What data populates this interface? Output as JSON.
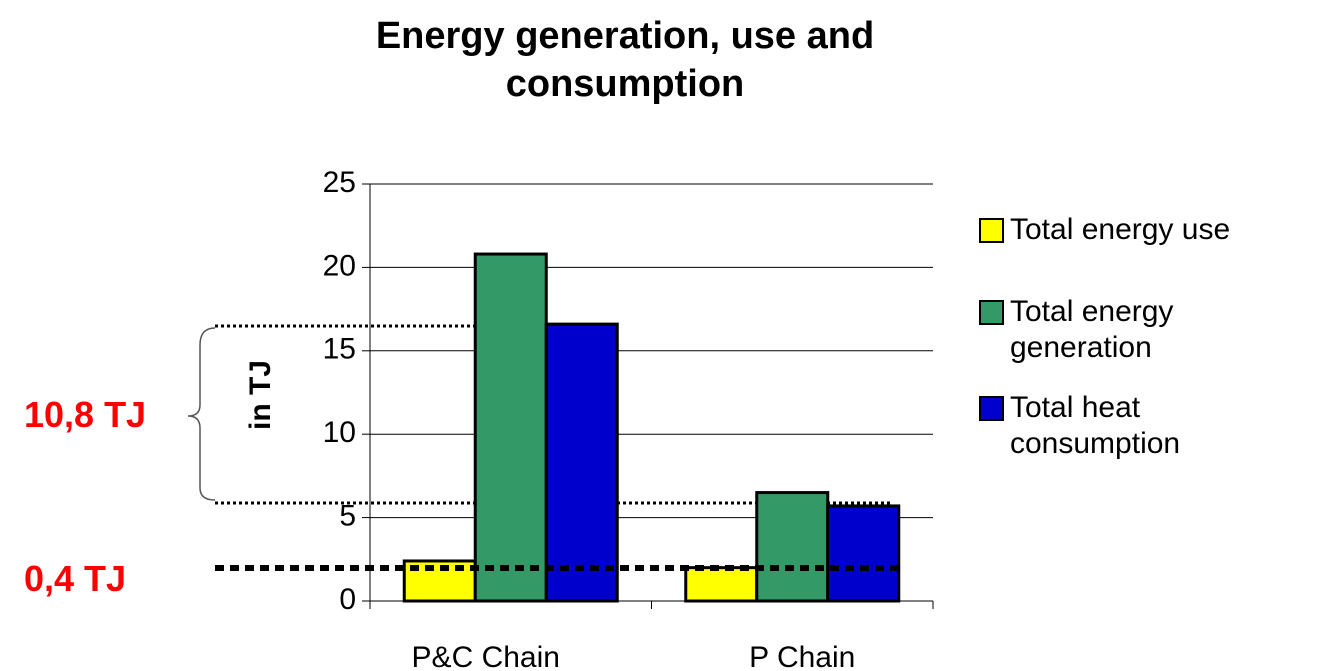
{
  "chart_data": {
    "type": "bar",
    "title": "Energy generation, use and consumption",
    "y_label": "in TJ",
    "categories": [
      "P&C Chain",
      "P Chain"
    ],
    "series": [
      {
        "name": "Total energy use",
        "color": "#ffff00",
        "values": [
          2.4,
          2.0
        ]
      },
      {
        "name": "Total energy generation",
        "color": "#339966",
        "values": [
          20.8,
          6.5
        ]
      },
      {
        "name": "Total heat consumption",
        "color": "#0000cc",
        "values": [
          16.6,
          5.7
        ]
      }
    ],
    "ylim": [
      0,
      25
    ],
    "yticks": [
      0,
      5,
      10,
      15,
      20,
      25
    ],
    "grid": true,
    "legend": "right",
    "annotations": [
      "10,8 TJ",
      "0,4 TJ"
    ]
  }
}
